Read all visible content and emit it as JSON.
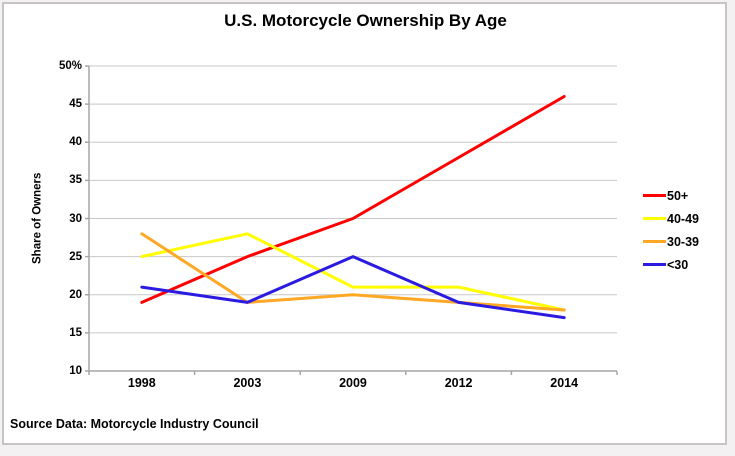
{
  "page": {
    "source_note": "Source Data: Motorcycle Industry Council"
  },
  "chart_data": {
    "type": "line",
    "title": "U.S. Motorcycle Ownership By Age",
    "xlabel": "",
    "ylabel": "Share of Owners",
    "categories": [
      "1998",
      "2003",
      "2009",
      "2012",
      "2014"
    ],
    "series": [
      {
        "name": "50+",
        "color": "#ff0000",
        "values": [
          19,
          25,
          30,
          38,
          46
        ]
      },
      {
        "name": "40-49",
        "color": "#ffff00",
        "values": [
          25,
          28,
          21,
          21,
          18
        ]
      },
      {
        "name": "30-39",
        "color": "#ffa826",
        "values": [
          28,
          19,
          20,
          19,
          18
        ]
      },
      {
        "name": "<30",
        "color": "#2b1be1",
        "values": [
          21,
          19,
          25,
          19,
          17
        ]
      }
    ],
    "ylim": [
      10,
      50
    ],
    "yticks": [
      50,
      45,
      40,
      35,
      30,
      25,
      20,
      15,
      10
    ],
    "ytick_labels": [
      "50%",
      "45",
      "40",
      "35",
      "30",
      "25",
      "20",
      "15",
      "10"
    ],
    "grid": "horizontal",
    "legend_position": "right"
  },
  "colors": {
    "axis": "#a6a6a6",
    "gridline": "#c8c8c8",
    "frame_border": "#c7c4c5",
    "page_background": "#f4f1f2",
    "chart_background": "#ffffff"
  }
}
